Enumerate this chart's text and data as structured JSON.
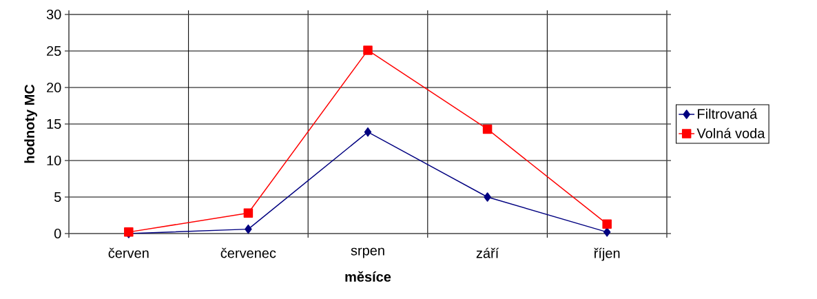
{
  "chart_data": {
    "type": "line",
    "xlabel": "měsíce",
    "ylabel": "hodnoty MC",
    "categories": [
      "červen",
      "červenec",
      "srpen",
      "září",
      "říjen"
    ],
    "series": [
      {
        "name": "Filtrovaná",
        "color": "#000080",
        "marker": "diamond",
        "values": [
          0,
          0.6,
          13.9,
          5.0,
          0.2
        ]
      },
      {
        "name": "Volná voda",
        "color": "#ff0000",
        "marker": "square",
        "values": [
          0.2,
          2.8,
          25.1,
          14.3,
          1.3
        ]
      }
    ],
    "ylim": [
      0,
      30
    ],
    "yticks": [
      0,
      5,
      10,
      15,
      20,
      25,
      30
    ],
    "grid": true,
    "legend": "right"
  }
}
